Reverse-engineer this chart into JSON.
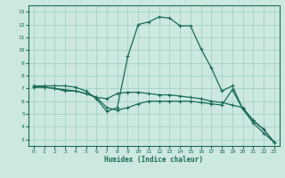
{
  "xlabel": "Humidex (Indice chaleur)",
  "bg_color": "#cce8e0",
  "line_color": "#1a6b5a",
  "grid_color": "#9ecec4",
  "xlim": [
    -0.5,
    23.5
  ],
  "ylim": [
    2.5,
    13.5
  ],
  "xticks": [
    0,
    1,
    2,
    3,
    4,
    5,
    6,
    7,
    8,
    9,
    10,
    11,
    12,
    13,
    14,
    15,
    16,
    17,
    18,
    19,
    20,
    21,
    22,
    23
  ],
  "yticks": [
    3,
    4,
    5,
    6,
    7,
    8,
    9,
    10,
    11,
    12,
    13
  ],
  "line1_x": [
    0,
    1,
    2,
    3,
    4,
    5,
    6,
    7,
    8,
    9,
    10,
    11,
    12,
    13,
    14,
    15,
    16,
    17,
    18,
    19,
    20,
    21,
    22,
    23
  ],
  "line1_y": [
    7.2,
    7.2,
    7.2,
    7.2,
    7.1,
    6.8,
    6.2,
    5.2,
    5.5,
    9.5,
    12.0,
    12.2,
    12.6,
    12.5,
    11.9,
    11.9,
    10.1,
    8.6,
    6.8,
    7.2,
    5.4,
    4.3,
    3.5,
    2.8
  ],
  "line2_x": [
    0,
    1,
    2,
    3,
    4,
    5,
    6,
    7,
    8,
    9,
    10,
    11,
    12,
    13,
    14,
    15,
    16,
    17,
    18,
    19,
    20,
    21,
    22,
    23
  ],
  "line2_y": [
    7.1,
    7.1,
    7.0,
    6.8,
    6.8,
    6.6,
    6.3,
    6.2,
    6.6,
    6.7,
    6.7,
    6.6,
    6.5,
    6.5,
    6.4,
    6.3,
    6.2,
    6.0,
    5.9,
    5.7,
    5.5,
    4.5,
    3.8,
    2.8
  ],
  "line3_x": [
    0,
    1,
    2,
    3,
    4,
    5,
    6,
    7,
    8,
    9,
    10,
    11,
    12,
    13,
    14,
    15,
    16,
    17,
    18,
    19,
    20,
    21,
    22,
    23
  ],
  "line3_y": [
    7.1,
    7.1,
    7.0,
    6.9,
    6.8,
    6.6,
    6.3,
    5.5,
    5.3,
    5.5,
    5.8,
    6.0,
    6.0,
    6.0,
    6.0,
    6.0,
    5.9,
    5.8,
    5.7,
    6.9,
    5.4,
    4.5,
    3.8,
    2.8
  ]
}
